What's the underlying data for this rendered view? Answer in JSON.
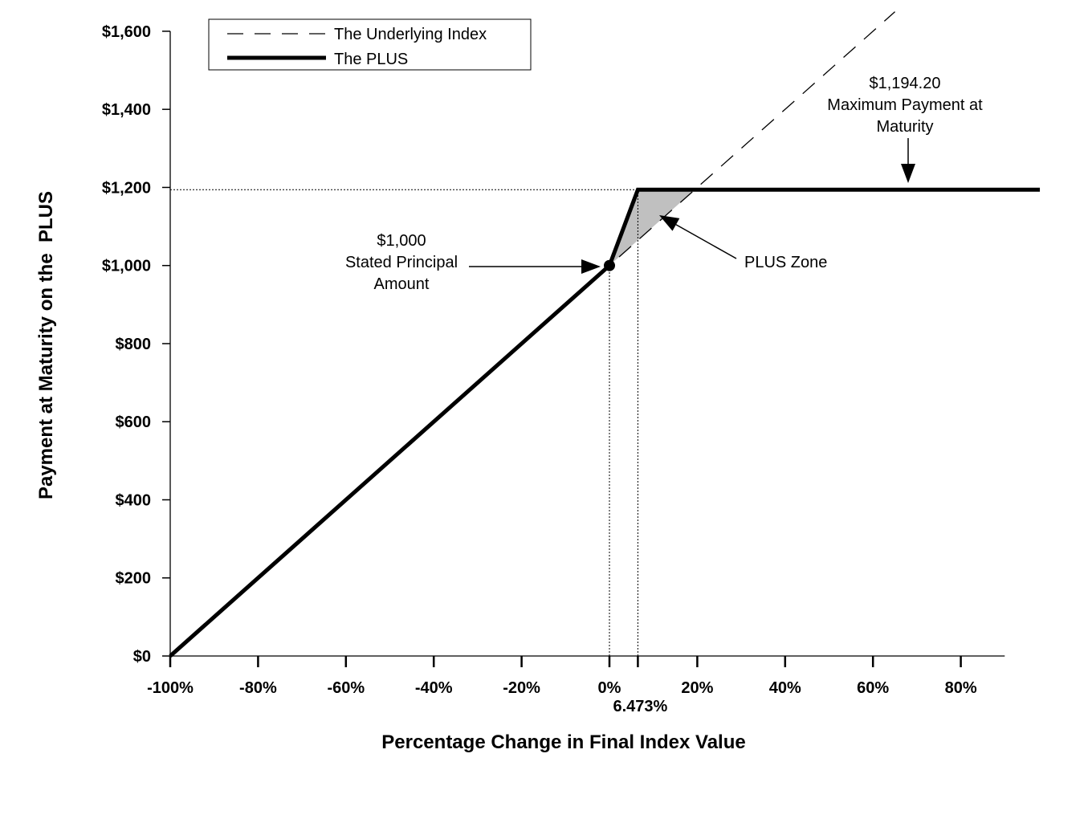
{
  "chart_data": {
    "type": "line",
    "xlabel": "Percentage Change in Final Index Value",
    "ylabel": "Payment at Maturity on the  PLUS",
    "xlim": [
      -100,
      90
    ],
    "ylim": [
      0,
      1600
    ],
    "x_ticks": [
      {
        "value": -100,
        "label": "-100%"
      },
      {
        "value": -80,
        "label": "-80%"
      },
      {
        "value": -60,
        "label": "-60%"
      },
      {
        "value": -40,
        "label": "-40%"
      },
      {
        "value": -20,
        "label": "-20%"
      },
      {
        "value": 0,
        "label": "0%"
      },
      {
        "value": 20,
        "label": "20%"
      },
      {
        "value": 40,
        "label": "40%"
      },
      {
        "value": 60,
        "label": "60%"
      },
      {
        "value": 80,
        "label": "80%"
      }
    ],
    "extra_x_tick": {
      "value": 6.473,
      "label": "6.473%"
    },
    "y_ticks": [
      {
        "value": 0,
        "label": "$0"
      },
      {
        "value": 200,
        "label": "$200"
      },
      {
        "value": 400,
        "label": "$400"
      },
      {
        "value": 600,
        "label": "$600"
      },
      {
        "value": 800,
        "label": "$800"
      },
      {
        "value": 1000,
        "label": "$1,000"
      },
      {
        "value": 1200,
        "label": "$1,200"
      },
      {
        "value": 1400,
        "label": "$1,400"
      },
      {
        "value": 1600,
        "label": "$1,600"
      }
    ],
    "series": [
      {
        "name": "The Underlying Index",
        "style": "dashed",
        "x": [
          -100,
          65
        ],
        "y": [
          0,
          1650
        ]
      },
      {
        "name": "The PLUS",
        "style": "solid-thick",
        "x": [
          -100,
          0,
          6.473,
          98
        ],
        "y": [
          0,
          1000,
          1194.2,
          1194.2
        ]
      }
    ],
    "shaded_region": {
      "label": "PLUS Zone",
      "x": [
        0,
        6.473,
        19.42
      ],
      "y": [
        1000,
        1194.2,
        1194.2
      ]
    },
    "marker": {
      "x": 0,
      "y": 1000
    },
    "reference_lines": [
      {
        "type": "horizontal",
        "y": 1194.2,
        "x_range": [
          -100,
          6.473
        ]
      },
      {
        "type": "vertical",
        "x": 0,
        "y_range": [
          0,
          1000
        ]
      },
      {
        "type": "vertical",
        "x": 6.473,
        "y_range": [
          0,
          1194.2
        ]
      }
    ],
    "annotations": {
      "max_payment": [
        "$1,194.20",
        "Maximum Payment at",
        "Maturity"
      ],
      "principal": [
        "$1,000",
        "Stated Principal",
        "Amount"
      ],
      "zone": "PLUS Zone"
    },
    "legend": {
      "position": "top-left"
    },
    "grid": false,
    "colors": {
      "line": "#000000",
      "shade": "#c0c0c0"
    }
  }
}
